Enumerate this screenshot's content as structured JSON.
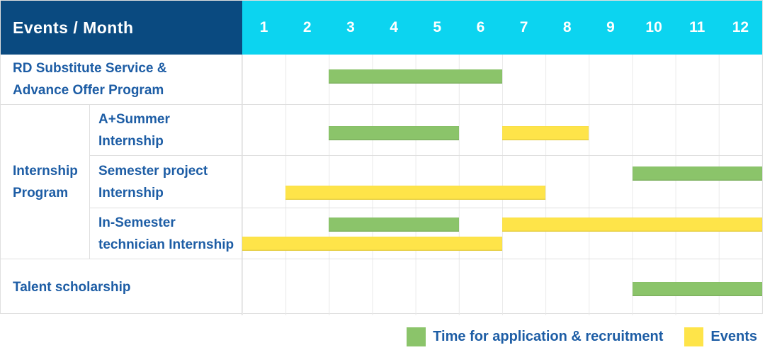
{
  "colors": {
    "header_bg": "#0a4a80",
    "months_bg": "#0cd4f0",
    "label_text": "#1d5da5",
    "grid_line": "#e9e9e9",
    "row_line": "#dfdfdf",
    "table_border": "#e0e0e0",
    "application_green": "#8bc46a",
    "events_yellow": "#fee449"
  },
  "header": {
    "title": "Events / Month",
    "months": [
      "1",
      "2",
      "3",
      "4",
      "5",
      "6",
      "7",
      "8",
      "9",
      "10",
      "11",
      "12"
    ]
  },
  "chart_data": {
    "type": "gantt",
    "x_unit": "month",
    "x_range": [
      1,
      12
    ],
    "series": {
      "application": {
        "label": "Time for application & recruitment",
        "color": "#8bc46a"
      },
      "events": {
        "label": "Events",
        "color": "#fee449"
      }
    },
    "groups": {
      "Internship Program": {
        "label_lines": [
          "Internship",
          "Program"
        ]
      }
    },
    "rows": [
      {
        "id": "rd-substitute-service",
        "label": "RD Substitute Service & Advance Offer Program",
        "label_lines": [
          "RD Substitute Service &",
          "Advance Offer Program"
        ],
        "group": null,
        "bars": [
          {
            "series": "application",
            "start_month": 3,
            "end_month": 6,
            "line": 0
          }
        ]
      },
      {
        "id": "a-plus-summer-internship",
        "label": "A+Summer Internship",
        "label_lines": [
          "A+Summer",
          "Internship"
        ],
        "group": "Internship Program",
        "bars": [
          {
            "series": "application",
            "start_month": 3,
            "end_month": 5,
            "line": 0
          },
          {
            "series": "events",
            "start_month": 7,
            "end_month": 8,
            "line": 0
          }
        ]
      },
      {
        "id": "semester-project-internship",
        "label": "Semester project Internship",
        "label_lines": [
          "Semester project",
          "Internship"
        ],
        "group": "Internship Program",
        "bars": [
          {
            "series": "application",
            "start_month": 10,
            "end_month": 12,
            "line": 0
          },
          {
            "series": "events",
            "start_month": 2,
            "end_month": 7,
            "line": 1
          }
        ]
      },
      {
        "id": "in-semester-technician-internship",
        "label": "In-Semester technician Internship",
        "label_lines": [
          "In-Semester",
          "technician Internship"
        ],
        "group": "Internship Program",
        "bars": [
          {
            "series": "application",
            "start_month": 3,
            "end_month": 5,
            "line": 0
          },
          {
            "series": "events",
            "start_month": 7,
            "end_month": 12,
            "line": 0
          },
          {
            "series": "events",
            "start_month": 1,
            "end_month": 6,
            "line": 1
          }
        ]
      },
      {
        "id": "talent-scholarship",
        "label": "Talent scholarship",
        "label_lines": [
          "Talent scholarship"
        ],
        "group": null,
        "bars": [
          {
            "series": "application",
            "start_month": 10,
            "end_month": 12,
            "line": 0
          }
        ]
      }
    ]
  },
  "legend": {
    "items": [
      {
        "series": "application",
        "label": "Time for application & recruitment"
      },
      {
        "series": "events",
        "label": "Events"
      }
    ]
  }
}
